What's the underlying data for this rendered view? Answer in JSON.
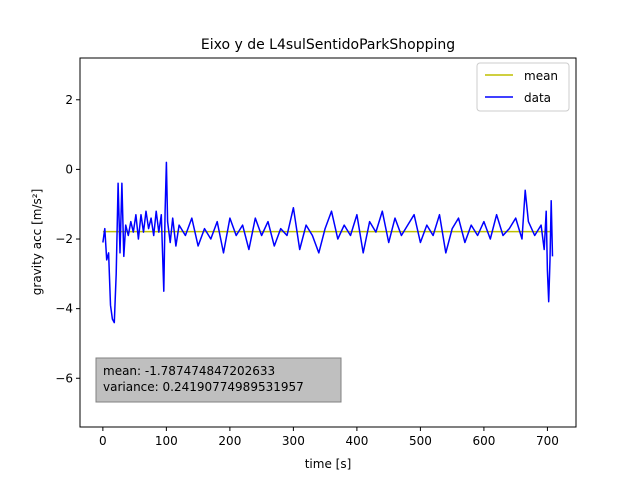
{
  "chart_data": {
    "type": "line",
    "title": "Eixo y de L4sulSentidoParkShopping",
    "xlabel": "time [s]",
    "ylabel": "gravity acc [m/s²]",
    "xlim": [
      -36,
      745
    ],
    "ylim": [
      -7.4,
      3.2
    ],
    "xticks": [
      0,
      100,
      200,
      300,
      400,
      500,
      600,
      700
    ],
    "yticks": [
      -6,
      -4,
      -2,
      0,
      2
    ],
    "legend": {
      "placement": "top-right",
      "entries": [
        "mean",
        "data"
      ]
    },
    "series": [
      {
        "name": "mean",
        "color": "#bfbf00",
        "x": [
          0,
          708
        ],
        "y": [
          -1.787474847202633,
          -1.787474847202633
        ]
      },
      {
        "name": "data",
        "color": "#0000ff",
        "x": [
          0,
          3,
          6,
          9,
          12,
          15,
          18,
          21,
          24,
          27,
          30,
          33,
          36,
          40,
          44,
          48,
          52,
          56,
          60,
          64,
          68,
          72,
          76,
          80,
          84,
          88,
          92,
          96,
          98,
          100,
          102,
          106,
          110,
          115,
          120,
          130,
          140,
          150,
          160,
          170,
          180,
          190,
          200,
          210,
          220,
          230,
          240,
          250,
          260,
          270,
          280,
          290,
          300,
          310,
          320,
          330,
          340,
          350,
          360,
          370,
          380,
          390,
          400,
          410,
          420,
          430,
          440,
          450,
          460,
          470,
          480,
          490,
          500,
          510,
          520,
          530,
          540,
          550,
          560,
          570,
          580,
          590,
          600,
          610,
          620,
          630,
          640,
          650,
          660,
          665,
          670,
          680,
          690,
          695,
          698,
          700,
          702,
          704,
          706,
          708
        ],
        "y": [
          -2.1,
          -1.7,
          -2.6,
          -2.4,
          -3.9,
          -4.3,
          -4.4,
          -3.0,
          -0.4,
          -2.4,
          -0.4,
          -2.5,
          -1.6,
          -1.9,
          -1.5,
          -1.8,
          -1.3,
          -2.0,
          -1.3,
          -1.8,
          -1.2,
          -1.7,
          -1.4,
          -1.9,
          -1.2,
          -1.8,
          -1.3,
          -3.5,
          -1.2,
          0.2,
          -1.5,
          -2.1,
          -1.4,
          -2.2,
          -1.6,
          -1.9,
          -1.4,
          -2.2,
          -1.7,
          -2.0,
          -1.5,
          -2.4,
          -1.4,
          -1.9,
          -1.6,
          -2.3,
          -1.4,
          -1.9,
          -1.5,
          -2.2,
          -1.7,
          -1.9,
          -1.1,
          -2.3,
          -1.6,
          -1.9,
          -2.4,
          -1.7,
          -1.2,
          -2.0,
          -1.6,
          -1.9,
          -1.3,
          -2.4,
          -1.5,
          -1.8,
          -1.2,
          -2.1,
          -1.4,
          -1.9,
          -1.6,
          -1.3,
          -2.1,
          -1.6,
          -1.9,
          -1.3,
          -2.4,
          -1.7,
          -1.4,
          -2.1,
          -1.6,
          -1.9,
          -1.5,
          -2.0,
          -1.3,
          -1.9,
          -1.7,
          -1.4,
          -2.0,
          -0.6,
          -1.5,
          -1.9,
          -1.6,
          -2.3,
          -1.2,
          -2.9,
          -3.8,
          -2.6,
          -0.9,
          -2.5
        ]
      }
    ],
    "annotation": {
      "mean_text": "mean: -1.787474847202633",
      "variance_text": "variance: 0.24190774989531957",
      "placement": "bottom-left"
    },
    "grid": false
  }
}
